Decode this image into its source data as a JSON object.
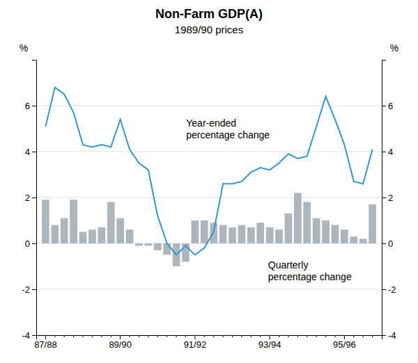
{
  "chart_data": {
    "type": "bar",
    "title": "Non-Farm GDP(A)",
    "subtitle": "1989/90 prices",
    "y_label": "%",
    "y2_label": "%",
    "categories": [
      "87/88",
      null,
      null,
      null,
      null,
      null,
      null,
      null,
      "89/90",
      null,
      null,
      null,
      null,
      null,
      null,
      null,
      "91/92",
      null,
      null,
      null,
      null,
      null,
      null,
      null,
      "93/94",
      null,
      null,
      null,
      null,
      null,
      null,
      null,
      "95/96",
      null,
      null,
      null
    ],
    "series": [
      {
        "type": "bar",
        "color": "#adb5bd",
        "values": [
          1.9,
          0.8,
          1.1,
          1.9,
          0.5,
          0.6,
          0.7,
          1.8,
          1.1,
          0.6,
          -0.1,
          -0.1,
          -0.3,
          -0.5,
          -1.0,
          -0.8,
          1.0,
          1.0,
          0.9,
          0.8,
          0.7,
          0.8,
          0.7,
          0.9,
          0.7,
          0.6,
          1.3,
          2.2,
          1.8,
          1.1,
          1.0,
          0.8,
          0.6,
          0.3,
          0.2,
          1.7
        ]
      },
      {
        "type": "line",
        "color": "#3399cc",
        "values": [
          5.1,
          6.8,
          6.5,
          5.7,
          4.3,
          4.2,
          4.3,
          4.2,
          5.4,
          4.1,
          3.5,
          3.2,
          1.2,
          0.0,
          -0.5,
          -0.1,
          -0.5,
          -0.2,
          0.5,
          2.6,
          2.6,
          2.7,
          3.1,
          3.3,
          3.2,
          3.5,
          3.9,
          3.7,
          3.8,
          5.1,
          6.4,
          5.4,
          4.3,
          2.7,
          2.6,
          4.1
        ]
      }
    ],
    "ylim": [
      -4,
      8
    ],
    "yticks": [
      -4,
      -2,
      0,
      2,
      4,
      6
    ],
    "y2lim": [
      -4,
      8
    ],
    "y2ticks": [
      -4,
      -2,
      0,
      2,
      4,
      6
    ],
    "grid": true,
    "annotations": [
      "Year-ended\npercentage change",
      "Quarterly\npercentage change"
    ]
  }
}
